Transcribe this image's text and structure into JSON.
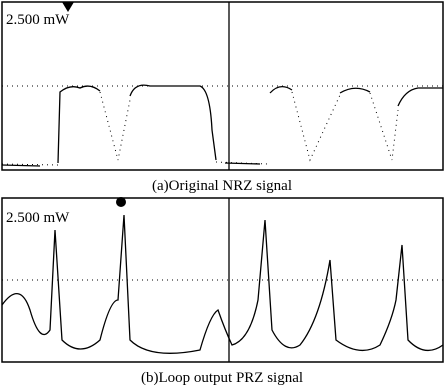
{
  "panels": [
    {
      "scale_label": "2.500 mW",
      "caption": "(a)Original NRZ signal"
    },
    {
      "scale_label": "2.500 mW",
      "caption": "(b)Loop output PRZ signal"
    }
  ]
}
